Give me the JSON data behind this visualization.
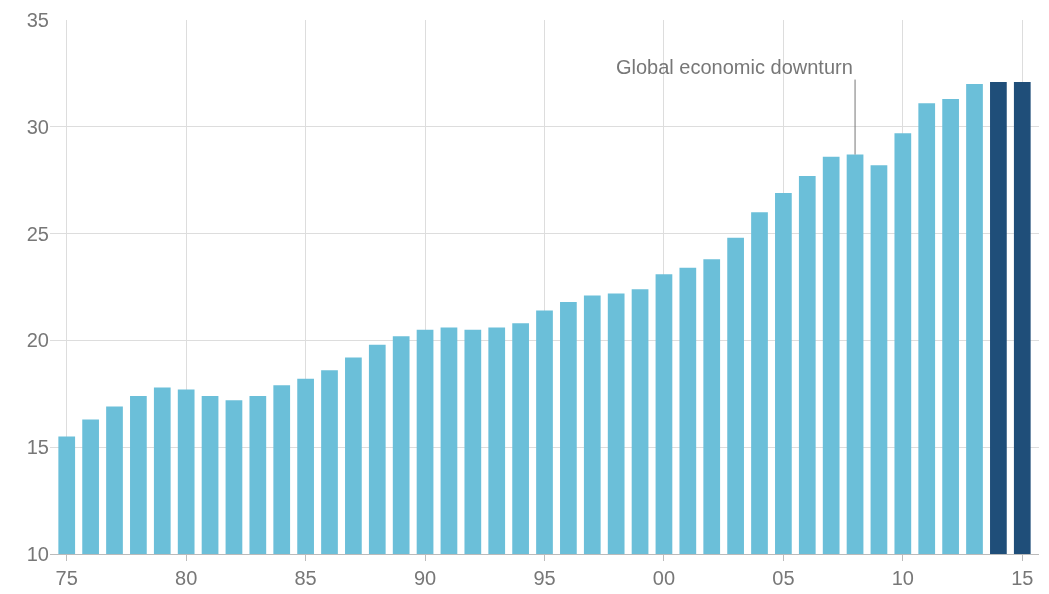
{
  "chart_data": {
    "type": "bar",
    "x": [
      1975,
      1976,
      1977,
      1978,
      1979,
      1980,
      1981,
      1982,
      1983,
      1984,
      1985,
      1986,
      1987,
      1988,
      1989,
      1990,
      1991,
      1992,
      1993,
      1994,
      1995,
      1996,
      1997,
      1998,
      1999,
      2000,
      2001,
      2002,
      2003,
      2004,
      2005,
      2006,
      2007,
      2008,
      2009,
      2010,
      2011,
      2012,
      2013,
      2014,
      2015
    ],
    "values": [
      15.5,
      16.3,
      16.9,
      17.4,
      17.8,
      17.7,
      17.4,
      17.2,
      17.4,
      17.9,
      18.2,
      18.6,
      19.2,
      19.8,
      20.2,
      20.5,
      20.6,
      20.5,
      20.6,
      20.8,
      21.4,
      21.8,
      22.1,
      22.2,
      22.4,
      23.1,
      23.4,
      23.8,
      24.8,
      26.0,
      26.9,
      27.7,
      28.6,
      28.7,
      28.2,
      29.7,
      31.1,
      31.3,
      32.0,
      32.1,
      32.1
    ],
    "colors": [
      "#6bbfd9",
      "#6bbfd9",
      "#6bbfd9",
      "#6bbfd9",
      "#6bbfd9",
      "#6bbfd9",
      "#6bbfd9",
      "#6bbfd9",
      "#6bbfd9",
      "#6bbfd9",
      "#6bbfd9",
      "#6bbfd9",
      "#6bbfd9",
      "#6bbfd9",
      "#6bbfd9",
      "#6bbfd9",
      "#6bbfd9",
      "#6bbfd9",
      "#6bbfd9",
      "#6bbfd9",
      "#6bbfd9",
      "#6bbfd9",
      "#6bbfd9",
      "#6bbfd9",
      "#6bbfd9",
      "#6bbfd9",
      "#6bbfd9",
      "#6bbfd9",
      "#6bbfd9",
      "#6bbfd9",
      "#6bbfd9",
      "#6bbfd9",
      "#6bbfd9",
      "#6bbfd9",
      "#6bbfd9",
      "#6bbfd9",
      "#6bbfd9",
      "#6bbfd9",
      "#6bbfd9",
      "#1f4e79",
      "#1f4e79"
    ],
    "xlim": [
      1974.3,
      2015.7
    ],
    "xticks": [
      {
        "value": 1975,
        "label": "75"
      },
      {
        "value": 1980,
        "label": "80"
      },
      {
        "value": 1985,
        "label": "85"
      },
      {
        "value": 1990,
        "label": "90"
      },
      {
        "value": 1995,
        "label": "95"
      },
      {
        "value": 2000,
        "label": "00"
      },
      {
        "value": 2005,
        "label": "05"
      },
      {
        "value": 2010,
        "label": "10"
      },
      {
        "value": 2015,
        "label": "15"
      }
    ],
    "ylim": [
      10,
      35
    ],
    "yticks": [
      10,
      15,
      20,
      25,
      30,
      35
    ],
    "grid": true,
    "annotations": [
      {
        "text": "Global economic downturn",
        "x": 2008,
        "y": 28.7
      }
    ]
  }
}
